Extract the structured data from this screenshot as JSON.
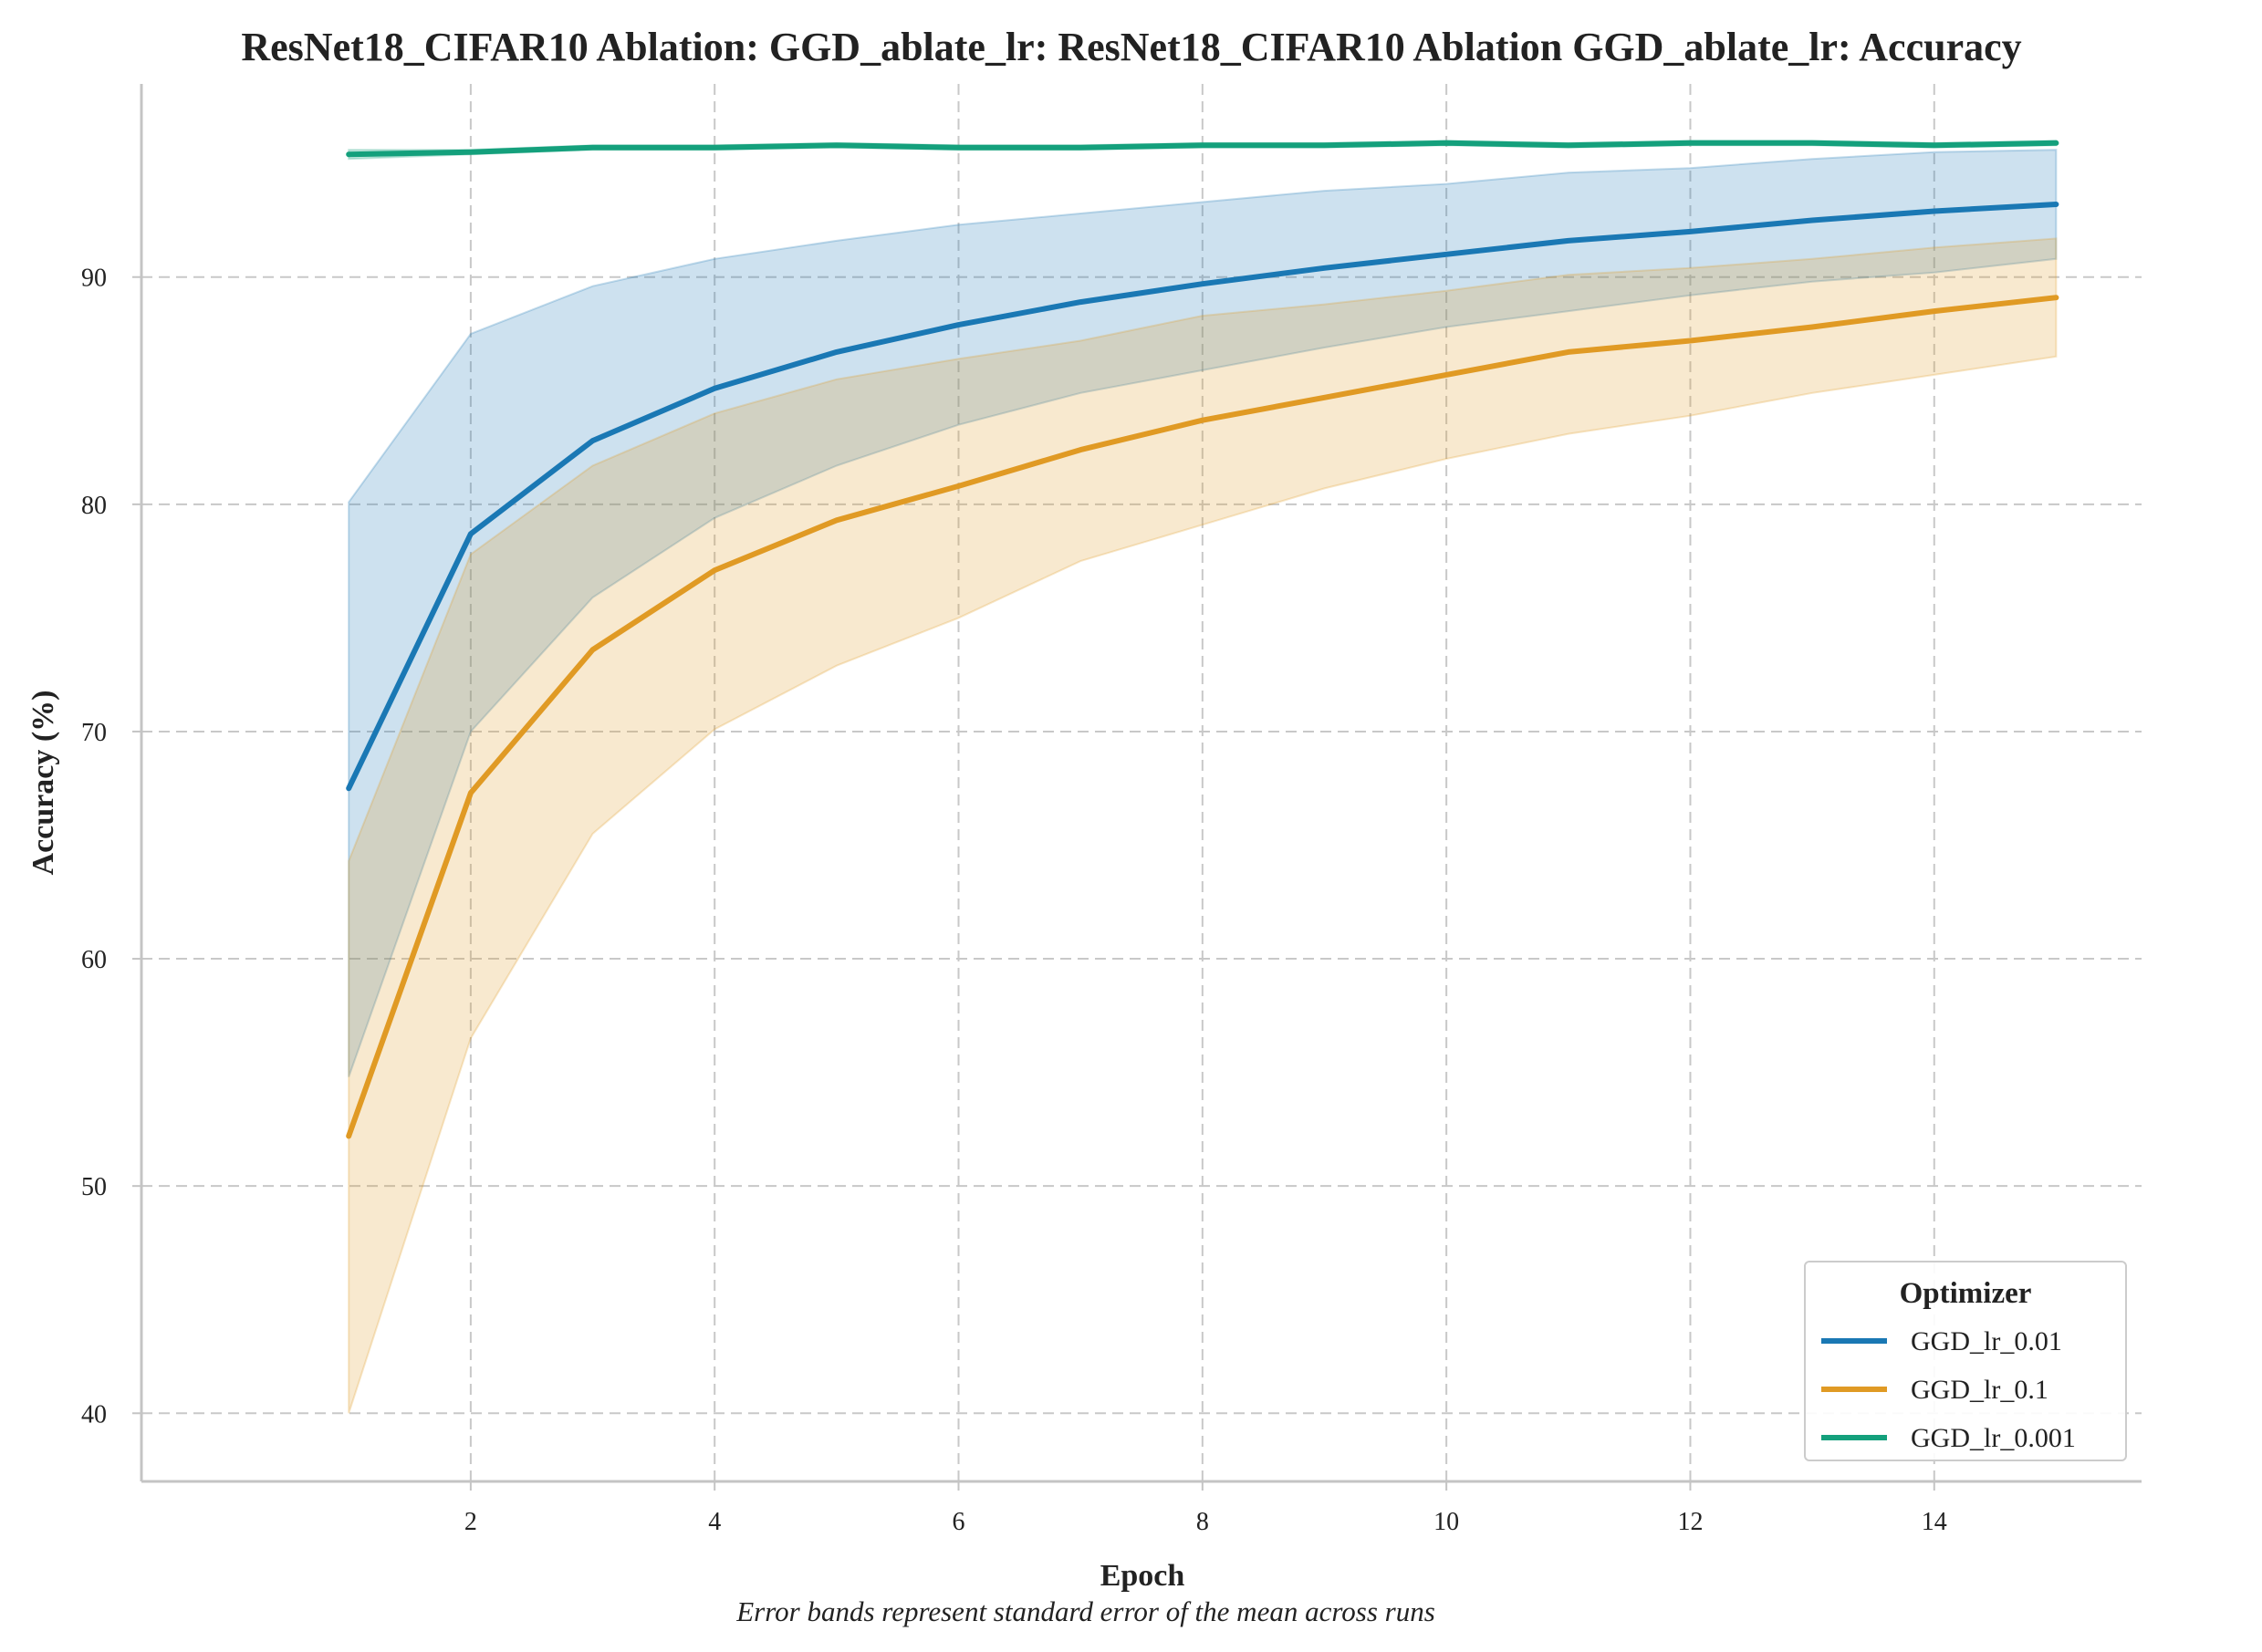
{
  "chart_data": {
    "type": "line",
    "title": "ResNet18_CIFAR10 Ablation: GGD_ablate_lr: ResNet18_CIFAR10 Ablation GGD_ablate_lr: Accuracy",
    "xlabel": "Epoch",
    "ylabel": "Accuracy (%)",
    "caption": "Error bands represent standard error of the mean across runs",
    "xlim": [
      -0.7,
      15.7
    ],
    "ylim": [
      37,
      98.5
    ],
    "x_ticks": [
      2,
      4,
      6,
      8,
      10,
      12,
      14
    ],
    "y_ticks": [
      40,
      50,
      60,
      70,
      80,
      90
    ],
    "grid": true,
    "legend": {
      "title": "Optimizer",
      "placement": "lower-right"
    },
    "x": [
      1,
      2,
      3,
      4,
      5,
      6,
      7,
      8,
      9,
      10,
      11,
      12,
      13,
      14,
      15
    ],
    "series": [
      {
        "name": "GGD_lr_0.01",
        "color": "#1a78b4",
        "values": [
          67.5,
          78.7,
          82.8,
          85.1,
          86.7,
          87.9,
          88.9,
          89.7,
          90.4,
          91.0,
          91.6,
          92.0,
          92.5,
          92.9,
          93.2
        ],
        "lower": [
          54.8,
          70.0,
          75.9,
          79.4,
          81.7,
          83.5,
          84.9,
          85.9,
          86.9,
          87.8,
          88.5,
          89.2,
          89.8,
          90.2,
          90.8
        ],
        "upper": [
          80.1,
          87.5,
          89.6,
          90.8,
          91.6,
          92.3,
          92.8,
          93.3,
          93.8,
          94.1,
          94.6,
          94.8,
          95.2,
          95.5,
          95.6
        ]
      },
      {
        "name": "GGD_lr_0.1",
        "color": "#e09a24",
        "values": [
          52.2,
          67.3,
          73.6,
          77.1,
          79.3,
          80.8,
          82.4,
          83.7,
          84.7,
          85.7,
          86.7,
          87.2,
          87.8,
          88.5,
          89.1
        ],
        "lower": [
          40.0,
          56.5,
          65.5,
          70.1,
          72.9,
          75.0,
          77.5,
          79.1,
          80.7,
          82.0,
          83.1,
          83.9,
          84.9,
          85.7,
          86.5
        ],
        "upper": [
          64.3,
          77.8,
          81.7,
          84.0,
          85.5,
          86.4,
          87.2,
          88.3,
          88.8,
          89.4,
          90.1,
          90.4,
          90.8,
          91.3,
          91.7
        ]
      },
      {
        "name": "GGD_lr_0.001",
        "color": "#14a07c",
        "values": [
          95.4,
          95.5,
          95.7,
          95.7,
          95.8,
          95.7,
          95.7,
          95.8,
          95.8,
          95.9,
          95.8,
          95.9,
          95.9,
          95.8,
          95.9
        ],
        "lower": [
          95.2,
          95.4,
          95.6,
          95.6,
          95.7,
          95.6,
          95.6,
          95.7,
          95.7,
          95.8,
          95.7,
          95.8,
          95.8,
          95.7,
          95.8
        ],
        "upper": [
          95.6,
          95.6,
          95.8,
          95.8,
          95.9,
          95.8,
          95.8,
          95.9,
          95.9,
          96.0,
          95.9,
          96.0,
          96.0,
          95.9,
          96.0
        ]
      }
    ]
  }
}
